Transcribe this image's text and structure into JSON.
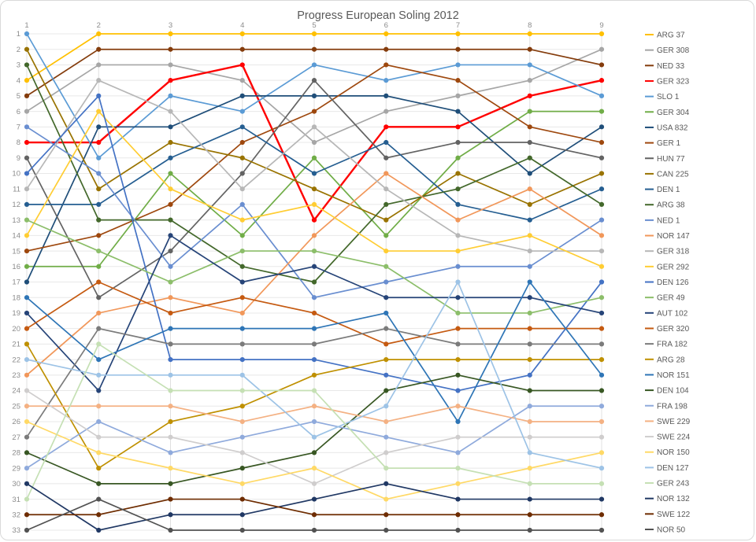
{
  "window": {
    "background": "#ffffff",
    "border_color": "#d9d9d9"
  },
  "colors": {
    "title_text": "#595959",
    "axis_text": "#8c8c8c",
    "legend_text": "#595959",
    "gridline": "#e8e8e8",
    "column_gridline": "#e0e0e0"
  },
  "chart_data": {
    "type": "line",
    "subtype": "bump-chart",
    "title": "Progress European Soling 2012",
    "xlabel": "",
    "ylabel": "",
    "x_axis": {
      "position": "top",
      "ticks": [
        1,
        2,
        3,
        4,
        5,
        6,
        7,
        8,
        9
      ],
      "tick_labels": [
        "1",
        "2",
        "3",
        "4",
        "5",
        "6",
        "7",
        "8",
        "9"
      ]
    },
    "y_axis": {
      "position": "left",
      "min": 1,
      "max": 33,
      "inverted": true,
      "tick_labels": [
        "1",
        "2",
        "3",
        "4",
        "5",
        "6",
        "7",
        "8",
        "9",
        "10",
        "11",
        "12",
        "13",
        "14",
        "15",
        "16",
        "17",
        "18",
        "19",
        "20",
        "21",
        "22",
        "23",
        "24",
        "25",
        "26",
        "27",
        "28",
        "29",
        "30",
        "31",
        "32",
        "33"
      ]
    },
    "grid": true,
    "legend_position": "right",
    "series": [
      {
        "name": "ARG 37",
        "color": "#FFC000",
        "line_width": 1.7,
        "positions": [
          4,
          1,
          1,
          1,
          1,
          1,
          1,
          1,
          1
        ]
      },
      {
        "name": "GER 308",
        "color": "#A6A6A6",
        "line_width": 1.7,
        "positions": [
          6,
          3,
          3,
          4,
          8,
          6,
          5,
          4,
          2
        ]
      },
      {
        "name": "NED 33",
        "color": "#843C0C",
        "line_width": 1.7,
        "positions": [
          5,
          2,
          2,
          2,
          2,
          2,
          2,
          2,
          3
        ]
      },
      {
        "name": "GER 323",
        "color": "#FF0000",
        "line_width": 2.4,
        "positions": [
          8,
          8,
          4,
          3,
          13,
          7,
          7,
          5,
          4
        ]
      },
      {
        "name": "SLO 1",
        "color": "#5B9BD5",
        "line_width": 1.7,
        "positions": [
          1,
          9,
          5,
          6,
          3,
          4,
          3,
          3,
          5
        ]
      },
      {
        "name": "GER 304",
        "color": "#70AD47",
        "line_width": 1.7,
        "positions": [
          16,
          16,
          10,
          14,
          9,
          14,
          9,
          6,
          6
        ]
      },
      {
        "name": "USA 832",
        "color": "#1F4E79",
        "line_width": 1.7,
        "positions": [
          17,
          7,
          7,
          5,
          5,
          5,
          6,
          10,
          7
        ]
      },
      {
        "name": "GER 1",
        "color": "#9E480E",
        "line_width": 1.7,
        "positions": [
          15,
          14,
          12,
          8,
          6,
          3,
          4,
          7,
          8
        ]
      },
      {
        "name": "HUN 77",
        "color": "#636363",
        "line_width": 1.7,
        "positions": [
          9,
          18,
          15,
          10,
          4,
          9,
          8,
          8,
          9
        ]
      },
      {
        "name": "CAN 225",
        "color": "#997300",
        "line_width": 1.7,
        "positions": [
          2,
          11,
          8,
          9,
          11,
          13,
          10,
          12,
          10
        ]
      },
      {
        "name": "DEN 1",
        "color": "#255E91",
        "line_width": 1.7,
        "positions": [
          12,
          12,
          9,
          7,
          10,
          8,
          12,
          13,
          11
        ]
      },
      {
        "name": "ARG 38",
        "color": "#43682B",
        "line_width": 1.7,
        "positions": [
          3,
          13,
          13,
          16,
          17,
          12,
          11,
          9,
          12
        ]
      },
      {
        "name": "NED 1",
        "color": "#698ED0",
        "line_width": 1.7,
        "positions": [
          7,
          10,
          16,
          12,
          18,
          17,
          16,
          16,
          13
        ]
      },
      {
        "name": "NOR 147",
        "color": "#F1975A",
        "line_width": 1.7,
        "positions": [
          23,
          19,
          18,
          19,
          14,
          10,
          13,
          11,
          14
        ]
      },
      {
        "name": "GER 318",
        "color": "#B7B7B7",
        "line_width": 1.7,
        "positions": [
          11,
          4,
          6,
          11,
          7,
          11,
          14,
          15,
          15
        ]
      },
      {
        "name": "GER 292",
        "color": "#FFCD33",
        "line_width": 1.7,
        "positions": [
          14,
          6,
          11,
          13,
          12,
          15,
          15,
          14,
          16
        ]
      },
      {
        "name": "DEN 126",
        "color": "#4472C4",
        "line_width": 1.7,
        "positions": [
          10,
          5,
          22,
          22,
          22,
          23,
          24,
          23,
          17
        ]
      },
      {
        "name": "GER 49",
        "color": "#8CBE6A",
        "line_width": 1.7,
        "positions": [
          13,
          15,
          17,
          15,
          15,
          16,
          19,
          19,
          18
        ]
      },
      {
        "name": "AUT 102",
        "color": "#264478",
        "line_width": 1.7,
        "positions": [
          19,
          24,
          14,
          17,
          16,
          18,
          18,
          18,
          19
        ]
      },
      {
        "name": "GER 320",
        "color": "#C55A11",
        "line_width": 1.7,
        "positions": [
          20,
          17,
          19,
          18,
          19,
          21,
          20,
          20,
          20
        ]
      },
      {
        "name": "FRA 182",
        "color": "#7B7B7B",
        "line_width": 1.7,
        "positions": [
          27,
          20,
          21,
          21,
          21,
          20,
          21,
          21,
          21
        ]
      },
      {
        "name": "ARG 28",
        "color": "#BF9000",
        "line_width": 1.7,
        "positions": [
          21,
          29,
          26,
          25,
          23,
          22,
          22,
          22,
          22
        ]
      },
      {
        "name": "NOR 151",
        "color": "#2E75B6",
        "line_width": 1.7,
        "positions": [
          18,
          22,
          20,
          20,
          20,
          19,
          26,
          17,
          23
        ]
      },
      {
        "name": "DEN 104",
        "color": "#385723",
        "line_width": 1.7,
        "positions": [
          28,
          30,
          30,
          29,
          28,
          24,
          23,
          24,
          24
        ]
      },
      {
        "name": "FRA 198",
        "color": "#8FAADC",
        "line_width": 1.7,
        "positions": [
          29,
          26,
          28,
          27,
          26,
          27,
          28,
          25,
          25
        ]
      },
      {
        "name": "SWE 229",
        "color": "#F4B183",
        "line_width": 1.7,
        "positions": [
          25,
          25,
          25,
          26,
          25,
          26,
          25,
          26,
          26
        ]
      },
      {
        "name": "SWE 224",
        "color": "#CFCDCD",
        "line_width": 1.7,
        "positions": [
          24,
          27,
          27,
          28,
          30,
          28,
          27,
          27,
          27
        ]
      },
      {
        "name": "NOR 150",
        "color": "#FFD966",
        "line_width": 1.7,
        "positions": [
          26,
          28,
          29,
          30,
          29,
          31,
          30,
          29,
          28
        ]
      },
      {
        "name": "DEN 127",
        "color": "#9DC3E6",
        "line_width": 1.7,
        "positions": [
          22,
          23,
          23,
          23,
          27,
          25,
          17,
          28,
          29
        ]
      },
      {
        "name": "GER 243",
        "color": "#C5E0B4",
        "line_width": 1.7,
        "positions": [
          31,
          21,
          24,
          24,
          24,
          29,
          29,
          30,
          30
        ]
      },
      {
        "name": "NOR 132",
        "color": "#203864",
        "line_width": 1.7,
        "positions": [
          30,
          33,
          32,
          32,
          31,
          30,
          31,
          31,
          31
        ]
      },
      {
        "name": "SWE 122",
        "color": "#6E2C00",
        "line_width": 1.7,
        "positions": [
          32,
          32,
          31,
          31,
          32,
          32,
          32,
          32,
          32
        ]
      },
      {
        "name": "NOR 50",
        "color": "#525252",
        "line_width": 1.7,
        "positions": [
          33,
          31,
          33,
          33,
          33,
          33,
          33,
          33,
          33
        ]
      }
    ]
  }
}
